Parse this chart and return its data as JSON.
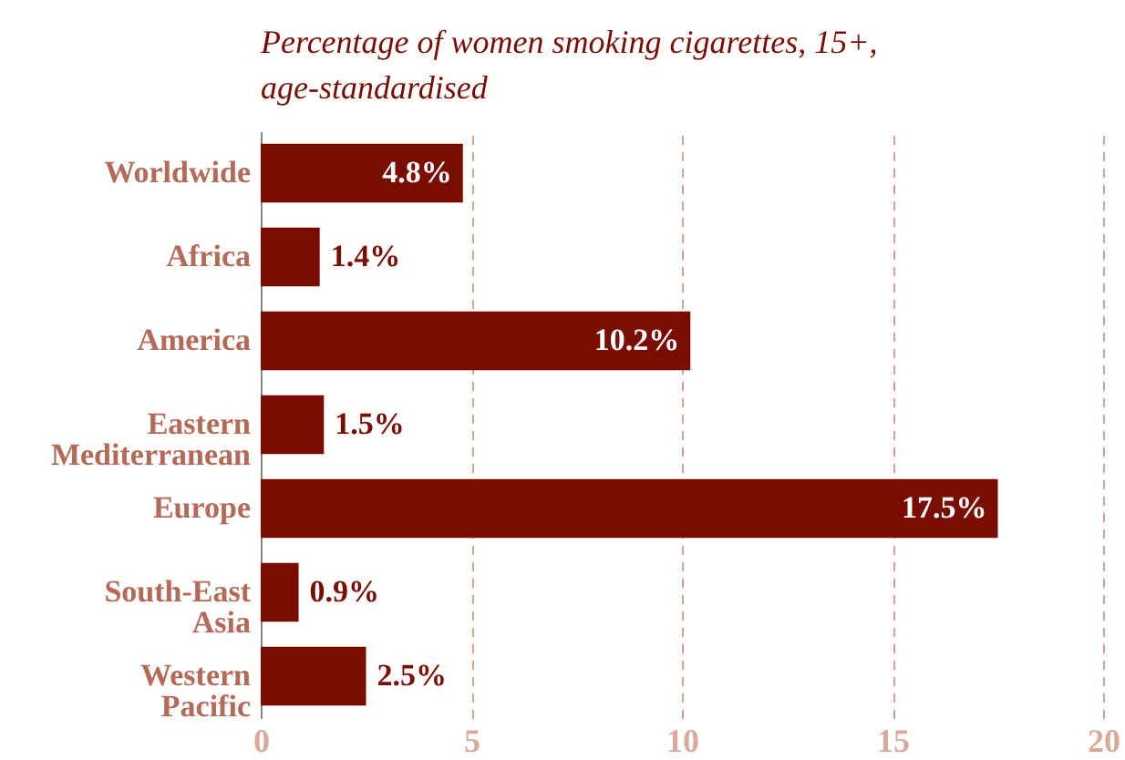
{
  "chart_data": {
    "type": "bar",
    "orientation": "horizontal",
    "title": "Percentage of women smoking cigarettes, 15+, age-standardised",
    "categories": [
      "Worldwide",
      "Africa",
      "America",
      "Eastern Mediterranean",
      "Europe",
      "South-East Asia",
      "Western Pacific"
    ],
    "values": [
      4.8,
      1.4,
      10.2,
      1.5,
      17.5,
      0.9,
      2.5
    ],
    "value_labels": [
      "4.8%",
      "1.4%",
      "10.2%",
      "1.5%",
      "17.5%",
      "0.9%",
      "2.5%"
    ],
    "color": "#7a0c02",
    "xlim": [
      0,
      20
    ],
    "xticks": [
      0,
      5,
      10,
      15,
      20
    ],
    "grid": "x"
  }
}
